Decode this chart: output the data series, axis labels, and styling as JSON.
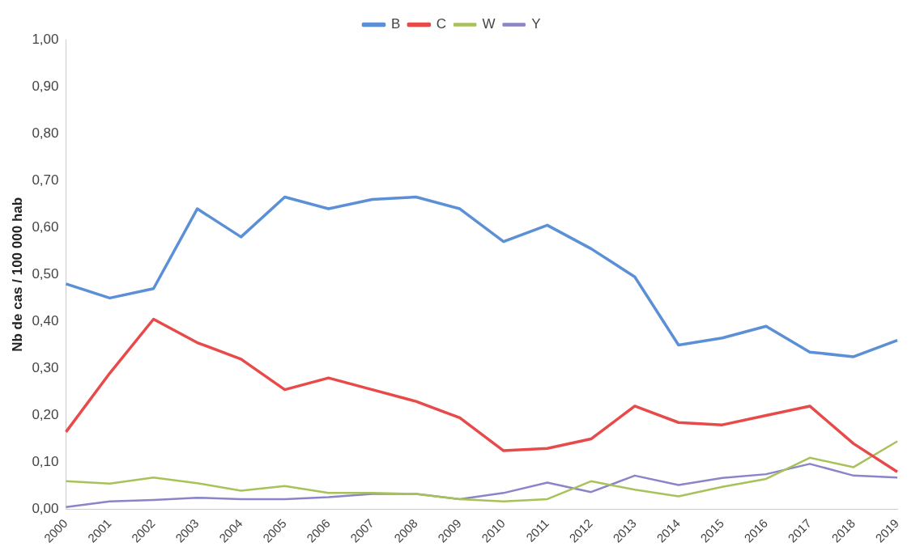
{
  "chart_data": {
    "type": "line",
    "ylabel": "Nb de cas / 100 000 hab",
    "legend": "top",
    "grid": false,
    "marker": "none",
    "line_style": "solid",
    "categories": [
      "2000",
      "2001",
      "2002",
      "2003",
      "2004",
      "2005",
      "2006",
      "2007",
      "2008",
      "2009",
      "2010",
      "2011",
      "2012",
      "2013",
      "2014",
      "2015",
      "2016",
      "2017",
      "2018",
      "2019"
    ],
    "ylim": [
      0,
      1
    ],
    "yticks": [
      {
        "value": 0,
        "label": "0,00"
      },
      {
        "value": 0.1,
        "label": "0,10"
      },
      {
        "value": 0.2,
        "label": "0,20"
      },
      {
        "value": 0.3,
        "label": "0,30"
      },
      {
        "value": 0.4,
        "label": "0,40"
      },
      {
        "value": 0.5,
        "label": "0,50"
      },
      {
        "value": 0.6,
        "label": "0,60"
      },
      {
        "value": 0.7,
        "label": "0,70"
      },
      {
        "value": 0.8,
        "label": "0,80"
      },
      {
        "value": 0.9,
        "label": "0,90"
      },
      {
        "value": 1,
        "label": "1,00"
      }
    ],
    "series": [
      {
        "name": "B",
        "color": "#5b8fd6",
        "values": [
          0.48,
          0.45,
          0.47,
          0.64,
          0.58,
          0.665,
          0.64,
          0.66,
          0.665,
          0.64,
          0.57,
          0.605,
          0.555,
          0.495,
          0.35,
          0.365,
          0.39,
          0.335,
          0.325,
          0.36
        ]
      },
      {
        "name": "C",
        "color": "#e84a4a",
        "values": [
          0.165,
          0.29,
          0.405,
          0.355,
          0.32,
          0.255,
          0.28,
          0.255,
          0.23,
          0.195,
          0.125,
          0.13,
          0.15,
          0.22,
          0.185,
          0.18,
          0.2,
          0.22,
          0.14,
          0.08
        ]
      },
      {
        "name": "W",
        "color": "#a8c25a",
        "values": [
          0.06,
          0.055,
          0.068,
          0.056,
          0.04,
          0.05,
          0.035,
          0.035,
          0.033,
          0.022,
          0.017,
          0.022,
          0.06,
          0.042,
          0.028,
          0.048,
          0.065,
          0.11,
          0.09,
          0.145
        ]
      },
      {
        "name": "Y",
        "color": "#8a84c8",
        "values": [
          0.005,
          0.017,
          0.02,
          0.025,
          0.022,
          0.022,
          0.026,
          0.033,
          0.033,
          0.022,
          0.035,
          0.057,
          0.037,
          0.072,
          0.052,
          0.067,
          0.075,
          0.097,
          0.072,
          0.068
        ]
      }
    ]
  }
}
